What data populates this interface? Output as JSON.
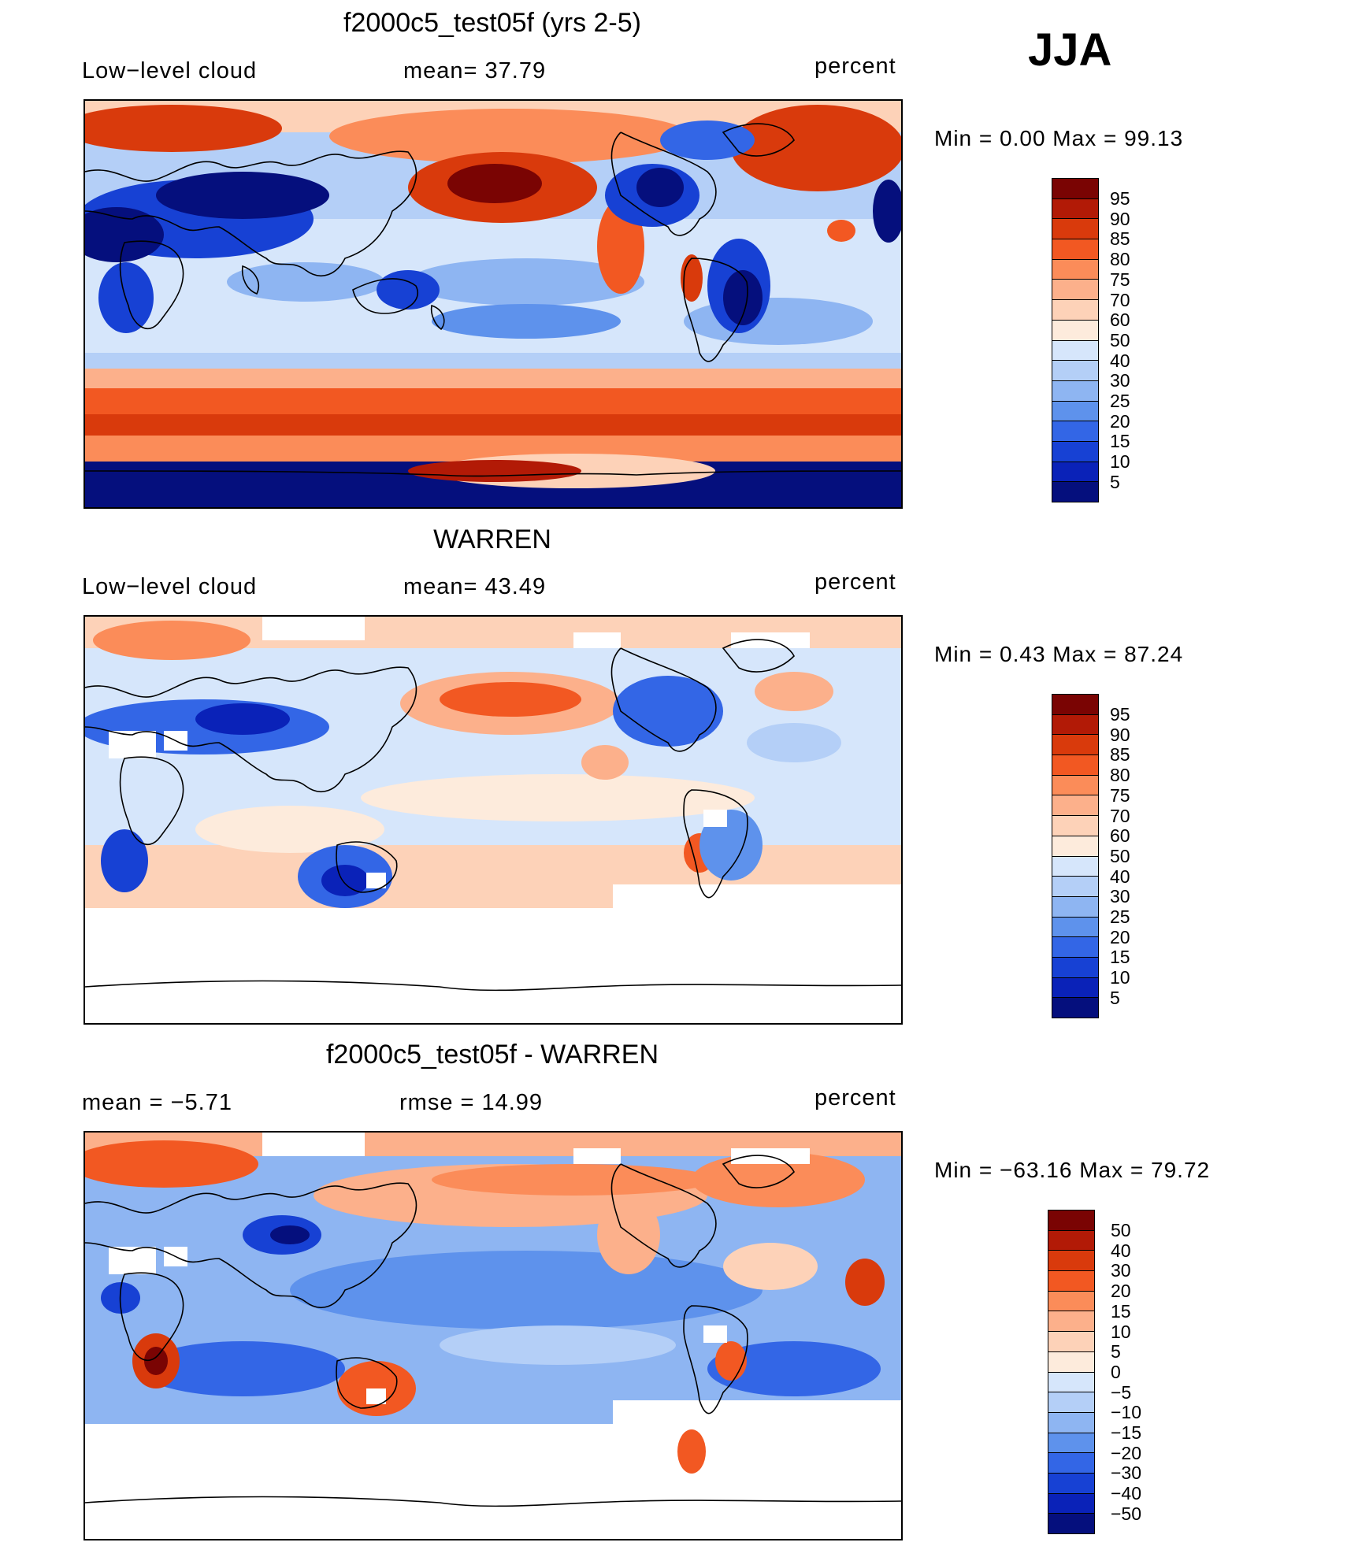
{
  "season": "JJA",
  "units_label": "percent",
  "panels": [
    {
      "title": "f2000c5_test05f (yrs 2-5)",
      "left_label": "Low−level cloud",
      "mid_label": "mean=   37.79",
      "minmax": "Min =     0.00 Max =   99.13",
      "map_kind": "model"
    },
    {
      "title": "WARREN",
      "left_label": "Low−level cloud",
      "mid_label": "mean=   43.49",
      "minmax": "Min =     0.43 Max =   87.24",
      "map_kind": "obs"
    },
    {
      "title": "f2000c5_test05f - WARREN",
      "left_label": "mean =   −5.71",
      "mid_label": "rmse =    14.99",
      "minmax": "Min = −63.16 Max =   79.72",
      "map_kind": "diff"
    }
  ],
  "colorbars": {
    "levels": [
      "95",
      "90",
      "85",
      "80",
      "75",
      "70",
      "60",
      "50",
      "40",
      "30",
      "25",
      "20",
      "15",
      "10",
      "5"
    ],
    "colors": [
      "#7a0403",
      "#b21a06",
      "#d93a0c",
      "#f25822",
      "#fb8c59",
      "#fcb08b",
      "#fdd2b8",
      "#fdebdc",
      "#d6e6fb",
      "#b4cff7",
      "#8eb5f2",
      "#5e92ec",
      "#3366e6",
      "#1741d4",
      "#0a22b8",
      "#050f7d"
    ],
    "diff_levels": [
      "50",
      "40",
      "30",
      "20",
      "15",
      "10",
      "5",
      "0",
      "−5",
      "−10",
      "−15",
      "−20",
      "−30",
      "−40",
      "−50"
    ],
    "diff_colors": [
      "#7a0403",
      "#b21a06",
      "#d93a0c",
      "#f25822",
      "#fb8c59",
      "#fcb08b",
      "#fdd2b8",
      "#fdebdc",
      "#d6e6fb",
      "#b4cff7",
      "#8eb5f2",
      "#5e92ec",
      "#3366e6",
      "#1741d4",
      "#0a22b8",
      "#050f7d"
    ]
  }
}
